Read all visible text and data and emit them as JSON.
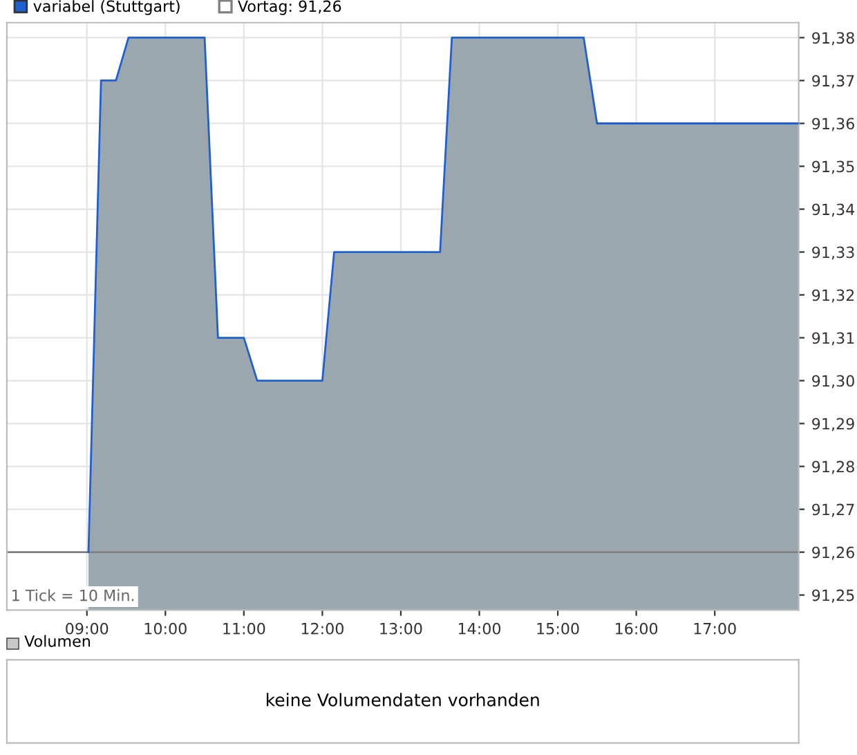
{
  "chart_data": [
    {
      "type": "area",
      "x": [
        9.02,
        9.18,
        9.37,
        9.53,
        10.5,
        10.67,
        11.0,
        11.17,
        12.0,
        12.15,
        13.5,
        13.65,
        15.33,
        15.5,
        18.07
      ],
      "series": [
        {
          "name": "variabel (Stuttgart)",
          "color": "#1f5fcf",
          "values": [
            91.26,
            91.37,
            91.37,
            91.38,
            91.38,
            91.31,
            91.31,
            91.3,
            91.3,
            91.33,
            91.33,
            91.38,
            91.38,
            91.36,
            91.36
          ]
        }
      ],
      "ref_lines": [
        {
          "axis": "y",
          "value": 91.26,
          "label": "Vortag: 91,26",
          "color": "#808080"
        }
      ],
      "xlim": [
        7.98,
        18.07
      ],
      "ylim": [
        91.2465,
        91.3835
      ],
      "xticks": [
        {
          "value": 9,
          "label": "09:00"
        },
        {
          "value": 10,
          "label": "10:00"
        },
        {
          "value": 11,
          "label": "11:00"
        },
        {
          "value": 12,
          "label": "12:00"
        },
        {
          "value": 13,
          "label": "13:00"
        },
        {
          "value": 14,
          "label": "14:00"
        },
        {
          "value": 15,
          "label": "15:00"
        },
        {
          "value": 16,
          "label": "16:00"
        },
        {
          "value": 17,
          "label": "17:00"
        }
      ],
      "yticks": [
        {
          "value": 91.25,
          "label": "91,25"
        },
        {
          "value": 91.26,
          "label": "91,26"
        },
        {
          "value": 91.27,
          "label": "91,27"
        },
        {
          "value": 91.28,
          "label": "91,28"
        },
        {
          "value": 91.29,
          "label": "91,29"
        },
        {
          "value": 91.3,
          "label": "91,30"
        },
        {
          "value": 91.31,
          "label": "91,31"
        },
        {
          "value": 91.32,
          "label": "91,32"
        },
        {
          "value": 91.33,
          "label": "91,33"
        },
        {
          "value": 91.34,
          "label": "91,34"
        },
        {
          "value": 91.35,
          "label": "91,35"
        },
        {
          "value": 91.36,
          "label": "91,36"
        },
        {
          "value": 91.37,
          "label": "91,37"
        },
        {
          "value": 91.38,
          "label": "91,38"
        }
      ],
      "grid": true,
      "legend": "top left",
      "annotations": [
        "1 Tick = 10 Min."
      ]
    },
    {
      "type": "other",
      "title": "Volumen",
      "annotations": [
        "keine Volumendaten vorhanden"
      ]
    }
  ]
}
